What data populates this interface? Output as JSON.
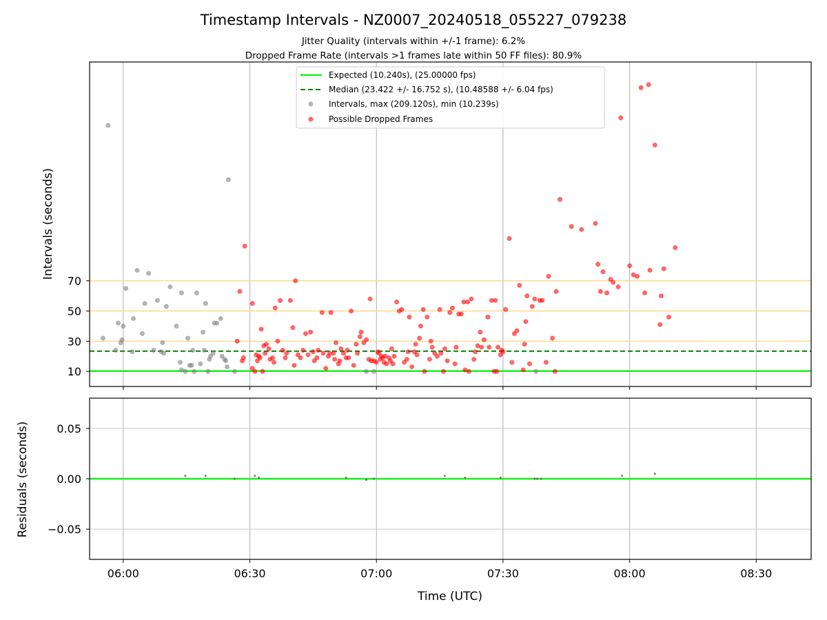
{
  "chart_data": [
    {
      "type": "scatter",
      "title": "Timestamp Intervals - NZ0007_20240518_055227_079238",
      "subtitles": [
        "Jitter Quality (intervals within +/-1 frame): 6.2%",
        "Dropped Frame Rate (intervals >1 frames late within 50 FF files): 80.9%"
      ],
      "xlabel": "",
      "ylabel": "Intervals (seconds)",
      "xlim": [
        5.867,
        8.717
      ],
      "ylim": [
        0,
        215
      ],
      "xticks": [
        {
          "v": 6.0,
          "label": "06:00"
        },
        {
          "v": 6.5,
          "label": "06:30"
        },
        {
          "v": 7.0,
          "label": "07:00"
        },
        {
          "v": 7.5,
          "label": "07:30"
        },
        {
          "v": 8.0,
          "label": "08:00"
        },
        {
          "v": 8.5,
          "label": "08:30"
        }
      ],
      "yticks": [
        10,
        30,
        50,
        70
      ],
      "grid": "x",
      "legend_position": "top-center",
      "colors": {
        "expected": "#19ee19",
        "median": "#008000",
        "normal": "#808080",
        "dropped": "#ff0000",
        "hline": "#ffd27a"
      },
      "hlines": [
        30,
        50,
        70
      ],
      "expected_line": {
        "y": 10.24,
        "label": "Expected (10.240s), (25.00000 fps)"
      },
      "median_line": {
        "y": 23.422,
        "label": "Median (23.422 +/- 16.752 s), (10.48588 +/- 6.04 fps)"
      },
      "series": [
        {
          "name": "Intervals, max (209.120s), min (10.239s)",
          "points": [
            [
              5.92,
              32
            ],
            [
              5.94,
              173
            ],
            [
              5.97,
              24
            ],
            [
              5.98,
              42
            ],
            [
              5.99,
              29
            ],
            [
              5.995,
              31
            ],
            [
              6.0,
              40
            ],
            [
              6.01,
              65
            ],
            [
              6.035,
              23
            ],
            [
              6.04,
              45
            ],
            [
              6.055,
              77
            ],
            [
              6.075,
              35
            ],
            [
              6.085,
              55
            ],
            [
              6.1,
              75
            ],
            [
              6.12,
              24
            ],
            [
              6.135,
              57
            ],
            [
              6.15,
              23
            ],
            [
              6.155,
              29
            ],
            [
              6.16,
              22
            ],
            [
              6.17,
              53
            ],
            [
              6.185,
              66
            ],
            [
              6.21,
              40
            ],
            [
              6.225,
              16
            ],
            [
              6.23,
              62
            ],
            [
              6.23,
              11
            ],
            [
              6.245,
              10
            ],
            [
              6.255,
              32
            ],
            [
              6.262,
              14
            ],
            [
              6.27,
              14
            ],
            [
              6.275,
              24
            ],
            [
              6.28,
              10
            ],
            [
              6.29,
              62
            ],
            [
              6.305,
              15
            ],
            [
              6.315,
              36
            ],
            [
              6.32,
              24
            ],
            [
              6.325,
              55
            ],
            [
              6.335,
              10
            ],
            [
              6.34,
              18
            ],
            [
              6.345,
              20
            ],
            [
              6.355,
              22
            ],
            [
              6.36,
              42
            ],
            [
              6.37,
              42
            ],
            [
              6.385,
              45
            ],
            [
              6.39,
              20
            ],
            [
              6.4,
              18
            ],
            [
              6.405,
              17
            ],
            [
              6.41,
              13
            ],
            [
              6.415,
              137
            ],
            [
              6.44,
              10
            ],
            [
              6.96,
              10
            ],
            [
              6.99,
              10
            ],
            [
              7.63,
              10
            ]
          ]
        },
        {
          "name": "Possible Dropped Frames",
          "points": [
            [
              6.45,
              30
            ],
            [
              6.46,
              63
            ],
            [
              6.47,
              17
            ],
            [
              6.475,
              19
            ],
            [
              6.48,
              93
            ],
            [
              6.51,
              55
            ],
            [
              6.51,
              12
            ],
            [
              6.52,
              10
            ],
            [
              6.525,
              21
            ],
            [
              6.53,
              17
            ],
            [
              6.535,
              20
            ],
            [
              6.54,
              19
            ],
            [
              6.545,
              38
            ],
            [
              6.55,
              10
            ],
            [
              6.555,
              27
            ],
            [
              6.56,
              22
            ],
            [
              6.565,
              28
            ],
            [
              6.575,
              25
            ],
            [
              6.58,
              18
            ],
            [
              6.59,
              19
            ],
            [
              6.595,
              16
            ],
            [
              6.6,
              52
            ],
            [
              6.61,
              30
            ],
            [
              6.62,
              57
            ],
            [
              6.63,
              24
            ],
            [
              6.64,
              19
            ],
            [
              6.645,
              22
            ],
            [
              6.66,
              57
            ],
            [
              6.67,
              39
            ],
            [
              6.675,
              14
            ],
            [
              6.68,
              70
            ],
            [
              6.69,
              21
            ],
            [
              6.7,
              19
            ],
            [
              6.71,
              24
            ],
            [
              6.72,
              35
            ],
            [
              6.73,
              21
            ],
            [
              6.74,
              36
            ],
            [
              6.75,
              23
            ],
            [
              6.755,
              17
            ],
            [
              6.765,
              19
            ],
            [
              6.77,
              24
            ],
            [
              6.785,
              49
            ],
            [
              6.79,
              22
            ],
            [
              6.8,
              12
            ],
            [
              6.81,
              20
            ],
            [
              6.815,
              22
            ],
            [
              6.82,
              49
            ],
            [
              6.83,
              22
            ],
            [
              6.835,
              18
            ],
            [
              6.84,
              29
            ],
            [
              6.85,
              15
            ],
            [
              6.855,
              17
            ],
            [
              6.86,
              25
            ],
            [
              6.87,
              22
            ],
            [
              6.88,
              19
            ],
            [
              6.885,
              24
            ],
            [
              6.89,
              19
            ],
            [
              6.9,
              50
            ],
            [
              6.91,
              14
            ],
            [
              6.92,
              28
            ],
            [
              6.925,
              22
            ],
            [
              6.935,
              33
            ],
            [
              6.94,
              36
            ],
            [
              6.95,
              29
            ],
            [
              6.96,
              31
            ],
            [
              6.97,
              18
            ],
            [
              6.975,
              58
            ],
            [
              6.98,
              17
            ],
            [
              6.99,
              17
            ],
            [
              7.0,
              16
            ],
            [
              7.005,
              23
            ],
            [
              7.01,
              22
            ],
            [
              7.015,
              18
            ],
            [
              7.02,
              20
            ],
            [
              7.025,
              19
            ],
            [
              7.03,
              16
            ],
            [
              7.035,
              20
            ],
            [
              7.04,
              15
            ],
            [
              7.05,
              19
            ],
            [
              7.055,
              17
            ],
            [
              7.06,
              25
            ],
            [
              7.065,
              15
            ],
            [
              7.07,
              20
            ],
            [
              7.08,
              56
            ],
            [
              7.09,
              50
            ],
            [
              7.1,
              51
            ],
            [
              7.11,
              16
            ],
            [
              7.12,
              18
            ],
            [
              7.125,
              23
            ],
            [
              7.13,
              46
            ],
            [
              7.14,
              13
            ],
            [
              7.15,
              23
            ],
            [
              7.155,
              28
            ],
            [
              7.16,
              21
            ],
            [
              7.17,
              32
            ],
            [
              7.175,
              40
            ],
            [
              7.185,
              51
            ],
            [
              7.19,
              10
            ],
            [
              7.2,
              46
            ],
            [
              7.21,
              18
            ],
            [
              7.215,
              30
            ],
            [
              7.22,
              26
            ],
            [
              7.23,
              22
            ],
            [
              7.24,
              20
            ],
            [
              7.25,
              51
            ],
            [
              7.255,
              22
            ],
            [
              7.265,
              10
            ],
            [
              7.27,
              25
            ],
            [
              7.28,
              17
            ],
            [
              7.29,
              49
            ],
            [
              7.3,
              52
            ],
            [
              7.31,
              15
            ],
            [
              7.315,
              26
            ],
            [
              7.325,
              48
            ],
            [
              7.335,
              48
            ],
            [
              7.345,
              56
            ],
            [
              7.35,
              11
            ],
            [
              7.36,
              56
            ],
            [
              7.365,
              10
            ],
            [
              7.375,
              58
            ],
            [
              7.385,
              18
            ],
            [
              7.39,
              23
            ],
            [
              7.4,
              27
            ],
            [
              7.41,
              36
            ],
            [
              7.415,
              26
            ],
            [
              7.425,
              31
            ],
            [
              7.44,
              46
            ],
            [
              7.445,
              26
            ],
            [
              7.455,
              57
            ],
            [
              7.465,
              10
            ],
            [
              7.47,
              57
            ],
            [
              7.475,
              10
            ],
            [
              7.48,
              26
            ],
            [
              7.49,
              21
            ],
            [
              7.495,
              24
            ],
            [
              7.5,
              23
            ],
            [
              7.51,
              51
            ],
            [
              7.525,
              98
            ],
            [
              7.535,
              16
            ],
            [
              7.545,
              35
            ],
            [
              7.555,
              37
            ],
            [
              7.565,
              67
            ],
            [
              7.58,
              11
            ],
            [
              7.585,
              28
            ],
            [
              7.59,
              43
            ],
            [
              7.595,
              60
            ],
            [
              7.605,
              15
            ],
            [
              7.615,
              53
            ],
            [
              7.625,
              58
            ],
            [
              7.645,
              57
            ],
            [
              7.655,
              57
            ],
            [
              7.67,
              16
            ],
            [
              7.68,
              73
            ],
            [
              7.695,
              32
            ],
            [
              7.705,
              10
            ],
            [
              7.71,
              63
            ],
            [
              7.725,
              124
            ],
            [
              7.77,
              106
            ],
            [
              7.81,
              104
            ],
            [
              7.865,
              108
            ],
            [
              7.875,
              81
            ],
            [
              7.885,
              63
            ],
            [
              7.895,
              76
            ],
            [
              7.91,
              62
            ],
            [
              7.925,
              71
            ],
            [
              7.935,
              69
            ],
            [
              7.955,
              66
            ],
            [
              7.965,
              178
            ],
            [
              8.0,
              80
            ],
            [
              8.015,
              74
            ],
            [
              8.03,
              73
            ],
            [
              8.045,
              198
            ],
            [
              8.06,
              62
            ],
            [
              8.075,
              200
            ],
            [
              8.08,
              77
            ],
            [
              8.1,
              160
            ],
            [
              8.12,
              41
            ],
            [
              8.125,
              60
            ],
            [
              8.135,
              78
            ],
            [
              8.155,
              46
            ],
            [
              8.18,
              92
            ]
          ]
        }
      ]
    },
    {
      "type": "scatter",
      "xlabel": "Time (UTC)",
      "ylabel": "Residuals (seconds)",
      "xlim": [
        5.867,
        8.717
      ],
      "ylim": [
        -0.08,
        0.08
      ],
      "yticks": [
        {
          "v": 0.05,
          "label": "0.05"
        },
        {
          "v": 0.0,
          "label": "0.00"
        },
        {
          "v": -0.05,
          "label": "−0.05"
        }
      ],
      "grid": "both",
      "zero_line_color": "#19ee19",
      "points": [
        [
          6.245,
          0.003
        ],
        [
          6.325,
          0.003
        ],
        [
          6.44,
          0.0
        ],
        [
          6.52,
          0.003
        ],
        [
          6.535,
          0.001
        ],
        [
          6.88,
          0.001
        ],
        [
          6.96,
          -0.001
        ],
        [
          6.99,
          0.0
        ],
        [
          7.27,
          0.003
        ],
        [
          7.35,
          0.001
        ],
        [
          7.49,
          0.001
        ],
        [
          7.625,
          0.0
        ],
        [
          7.635,
          0.0
        ],
        [
          7.65,
          0.0
        ],
        [
          7.97,
          0.003
        ],
        [
          8.1,
          0.005
        ]
      ]
    }
  ]
}
